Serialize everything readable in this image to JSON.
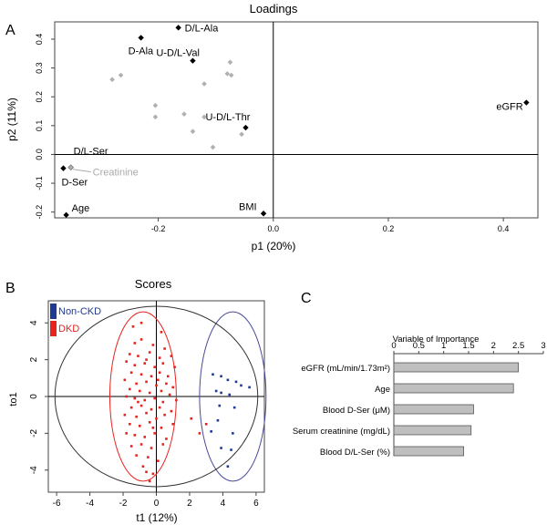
{
  "panel_labels": {
    "a": "A",
    "b": "B",
    "c": "C"
  },
  "chart_data": [
    {
      "type": "scatter",
      "title": "Loadings",
      "xlabel": "p1 (20%)",
      "ylabel": "p2 (11%)",
      "xlim": [
        -0.38,
        0.46
      ],
      "ylim": [
        -0.22,
        0.46
      ],
      "xticks": [
        -0.4,
        -0.2,
        0.0,
        0.2,
        0.4
      ],
      "xtick_labels": [
        "-0.4",
        "-0.2",
        "0.0",
        "0.2",
        "0.4"
      ],
      "yticks": [
        -0.2,
        -0.1,
        0.0,
        0.1,
        0.2,
        0.3,
        0.4
      ],
      "ytick_labels": [
        "-0.2",
        "-0.1",
        "0.0",
        "0.1",
        "0.2",
        "0.3",
        "0.4"
      ],
      "reference_lines": {
        "x": 0,
        "y": 0
      },
      "colors": {
        "labeled": "#000000",
        "unlabeled": "#b0b0b0",
        "creatinine": "#aaaaaa"
      },
      "points": [
        {
          "label": "D/L-Ala",
          "x": -0.165,
          "y": 0.44,
          "group": "labeled"
        },
        {
          "label": "D-Ala",
          "x": -0.23,
          "y": 0.405,
          "group": "labeled"
        },
        {
          "label": "U-D/L-Val",
          "x": -0.14,
          "y": 0.325,
          "group": "labeled"
        },
        {
          "label": "eGFR",
          "x": 0.44,
          "y": 0.18,
          "group": "labeled"
        },
        {
          "label": "U-D/L-Thr",
          "x": -0.048,
          "y": 0.093,
          "group": "labeled"
        },
        {
          "label": "D/L-Ser",
          "x": -0.352,
          "y": -0.045,
          "group": "labeled"
        },
        {
          "label": "D-Ser",
          "x": -0.365,
          "y": -0.048,
          "group": "labeled"
        },
        {
          "label": "Age",
          "x": -0.36,
          "y": -0.21,
          "group": "labeled"
        },
        {
          "label": "BMI",
          "x": -0.017,
          "y": -0.205,
          "group": "labeled"
        },
        {
          "label": "Creatinine",
          "x": -0.352,
          "y": -0.045,
          "group": "creatinine"
        },
        {
          "x": -0.28,
          "y": 0.26,
          "group": "unlabeled"
        },
        {
          "x": -0.265,
          "y": 0.275,
          "group": "unlabeled"
        },
        {
          "x": -0.075,
          "y": 0.32,
          "group": "unlabeled"
        },
        {
          "x": -0.08,
          "y": 0.28,
          "group": "unlabeled"
        },
        {
          "x": -0.073,
          "y": 0.275,
          "group": "unlabeled"
        },
        {
          "x": -0.12,
          "y": 0.245,
          "group": "unlabeled"
        },
        {
          "x": -0.205,
          "y": 0.17,
          "group": "unlabeled"
        },
        {
          "x": -0.205,
          "y": 0.13,
          "group": "unlabeled"
        },
        {
          "x": -0.155,
          "y": 0.14,
          "group": "unlabeled"
        },
        {
          "x": -0.12,
          "y": 0.13,
          "group": "unlabeled"
        },
        {
          "x": -0.14,
          "y": 0.08,
          "group": "unlabeled"
        },
        {
          "x": -0.105,
          "y": 0.025,
          "group": "unlabeled"
        },
        {
          "x": -0.055,
          "y": 0.07,
          "group": "unlabeled"
        }
      ]
    },
    {
      "type": "scatter",
      "title": "Scores",
      "xlabel": "t1 (12%)",
      "ylabel": "to1",
      "xlim": [
        -6.5,
        6.5
      ],
      "ylim": [
        -5.2,
        5.2
      ],
      "xticks": [
        -6,
        -4,
        -2,
        0,
        2,
        4,
        6
      ],
      "xtick_labels": [
        "-6",
        "-4",
        "-2",
        "0",
        "2",
        "4",
        "6"
      ],
      "yticks": [
        -4,
        -2,
        0,
        2,
        4
      ],
      "yticks_labels": [
        "-4",
        "-2",
        "0",
        "2",
        "4"
      ],
      "legend": [
        {
          "name": "Non-CKD",
          "color": "#1f3a93"
        },
        {
          "name": "DKD",
          "color": "#e8231e"
        }
      ],
      "legend_position": "top-left",
      "ellipses": [
        {
          "name": "Non-CKD",
          "center": [
            4.6,
            0
          ],
          "radius": [
            2.0,
            4.6
          ]
        },
        {
          "name": "DKD",
          "center": [
            -0.8,
            0
          ],
          "radius": [
            2.0,
            4.6
          ]
        },
        {
          "name": "overall",
          "center": [
            0,
            0
          ],
          "radius": [
            6.1,
            4.9
          ]
        }
      ],
      "series": [
        {
          "name": "Non-CKD",
          "points": [
            [
              3.4,
              1.2
            ],
            [
              3.9,
              1.1
            ],
            [
              4.3,
              0.9
            ],
            [
              4.8,
              0.8
            ],
            [
              5.1,
              0.6
            ],
            [
              5.6,
              0.5
            ],
            [
              3.6,
              0.3
            ],
            [
              3.9,
              0.2
            ],
            [
              4.4,
              0.1
            ],
            [
              3.8,
              -0.5
            ],
            [
              4.7,
              -0.6
            ],
            [
              3.7,
              -1.3
            ],
            [
              3.3,
              -1.9
            ],
            [
              4.6,
              -2.0
            ],
            [
              3.9,
              -2.8
            ],
            [
              4.5,
              -2.9
            ],
            [
              4.3,
              -3.8
            ]
          ]
        },
        {
          "name": "DKD",
          "points": [
            [
              -1.3,
              2.9
            ],
            [
              -0.9,
              3.1
            ],
            [
              -0.2,
              2.8
            ],
            [
              0.5,
              2.6
            ],
            [
              -1.6,
              2.3
            ],
            [
              -1.1,
              2.2
            ],
            [
              -0.4,
              2.4
            ],
            [
              0.2,
              2.1
            ],
            [
              0.9,
              2.2
            ],
            [
              -1.8,
              1.9
            ],
            [
              -1.3,
              1.7
            ],
            [
              -0.7,
              1.8
            ],
            [
              -0.1,
              1.6
            ],
            [
              0.4,
              1.8
            ],
            [
              1.1,
              1.6
            ],
            [
              -1.5,
              1.3
            ],
            [
              -0.9,
              1.2
            ],
            [
              -0.3,
              1.1
            ],
            [
              0.2,
              1.3
            ],
            [
              0.7,
              1.1
            ],
            [
              -1.9,
              0.9
            ],
            [
              -1.2,
              0.7
            ],
            [
              -0.6,
              0.8
            ],
            [
              0.0,
              0.6
            ],
            [
              0.6,
              0.7
            ],
            [
              1.0,
              0.5
            ],
            [
              -1.6,
              0.4
            ],
            [
              -1.0,
              0.3
            ],
            [
              -0.4,
              0.2
            ],
            [
              0.3,
              0.3
            ],
            [
              0.8,
              0.1
            ],
            [
              -1.8,
              0.0
            ],
            [
              -1.3,
              -0.1
            ],
            [
              -0.7,
              -0.2
            ],
            [
              -0.1,
              -0.1
            ],
            [
              0.4,
              -0.3
            ],
            [
              1.2,
              -0.2
            ],
            [
              -1.5,
              -0.6
            ],
            [
              -0.9,
              -0.5
            ],
            [
              -0.3,
              -0.7
            ],
            [
              0.2,
              -0.6
            ],
            [
              0.9,
              -0.8
            ],
            [
              -1.9,
              -1.0
            ],
            [
              -1.2,
              -1.1
            ],
            [
              -0.6,
              -0.9
            ],
            [
              0.0,
              -1.2
            ],
            [
              0.5,
              -1.0
            ],
            [
              -1.6,
              -1.5
            ],
            [
              -1.0,
              -1.6
            ],
            [
              -0.4,
              -1.4
            ],
            [
              0.3,
              -1.7
            ],
            [
              1.0,
              -1.5
            ],
            [
              -1.8,
              -2.0
            ],
            [
              -1.3,
              -2.1
            ],
            [
              -0.7,
              -2.2
            ],
            [
              -0.1,
              -2.0
            ],
            [
              0.6,
              -2.3
            ],
            [
              -1.5,
              -2.7
            ],
            [
              -0.9,
              -2.6
            ],
            [
              -0.3,
              -2.8
            ],
            [
              0.4,
              -2.6
            ],
            [
              -1.2,
              -3.2
            ],
            [
              -0.5,
              -3.3
            ],
            [
              0.1,
              -3.5
            ],
            [
              -0.8,
              -3.8
            ],
            [
              -0.6,
              -4.1
            ],
            [
              -0.4,
              -4.6
            ],
            [
              -0.2,
              -4.2
            ],
            [
              2.1,
              -1.2
            ],
            [
              3.0,
              -1.5
            ],
            [
              2.6,
              -2.0
            ],
            [
              -1.4,
              3.8
            ],
            [
              -0.9,
              4.0
            ],
            [
              0.3,
              3.5
            ],
            [
              -0.6,
              2.0
            ],
            [
              -1.1,
              -0.3
            ],
            [
              0.1,
              0.9
            ],
            [
              -0.2,
              -1.7
            ]
          ]
        }
      ]
    },
    {
      "type": "bar",
      "orientation": "horizontal",
      "title": "Variable of Importance",
      "categories": [
        "eGFR (mL/min/1.73m²)",
        "Age",
        "Blood D-Ser (μM)",
        "Serum creatinine (mg/dL)",
        "Blood D/L-Ser (%)"
      ],
      "values": [
        2.5,
        2.4,
        1.6,
        1.55,
        1.4
      ],
      "xlim": [
        0,
        3
      ],
      "xticks": [
        0,
        0.5,
        1,
        1.5,
        2,
        2.5,
        3
      ],
      "xtick_labels": [
        "0",
        "0.5",
        "1",
        "1.5",
        "2",
        "2.5",
        "3"
      ],
      "bar_color": "#bfbfbf"
    }
  ]
}
